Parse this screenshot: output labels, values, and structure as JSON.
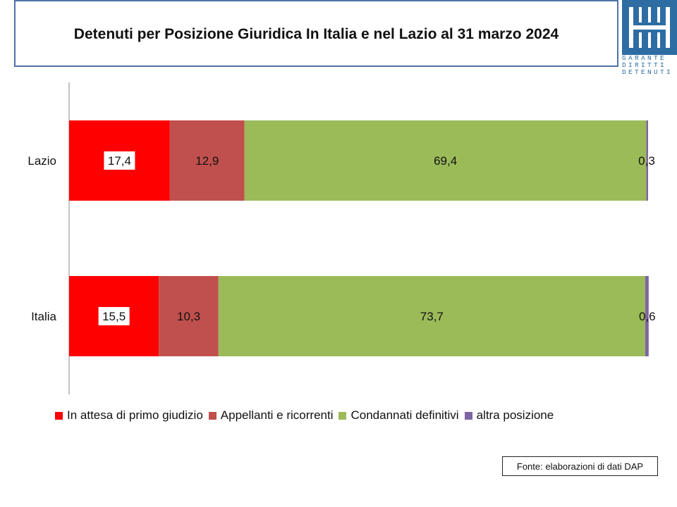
{
  "header": {
    "title": "Detenuti per Posizione Giuridica  In Italia e nel Lazio al 31 marzo 2024"
  },
  "logo": {
    "lines": [
      "GARANTE",
      "DIRITTI",
      "DETENUTI"
    ],
    "color": "#2e6da4"
  },
  "chart_data": {
    "type": "bar",
    "orientation": "horizontal",
    "stacked": "percent",
    "categories": [
      "Lazio",
      "Italia"
    ],
    "series": [
      {
        "name": "In attesa di primo giudizio",
        "values": [
          17.4,
          15.5
        ],
        "labels": [
          "17,4",
          "15,5"
        ],
        "color": "#ff0000"
      },
      {
        "name": "Appellanti e ricorrenti",
        "values": [
          12.9,
          10.3
        ],
        "labels": [
          "12,9",
          "10,3"
        ],
        "color": "#c0504d"
      },
      {
        "name": "Condannati definitivi",
        "values": [
          69.4,
          73.7
        ],
        "labels": [
          "69,4",
          "73,7"
        ],
        "color": "#9bbb59"
      },
      {
        "name": "altra posizione",
        "values": [
          0.3,
          0.6
        ],
        "labels": [
          "0,3",
          "0,6"
        ],
        "color": "#8064a2"
      }
    ],
    "xlim": [
      0,
      100
    ],
    "grid": false,
    "legend_position": "bottom"
  },
  "footer": {
    "source": "Fonte: elaborazioni di dati DAP"
  }
}
